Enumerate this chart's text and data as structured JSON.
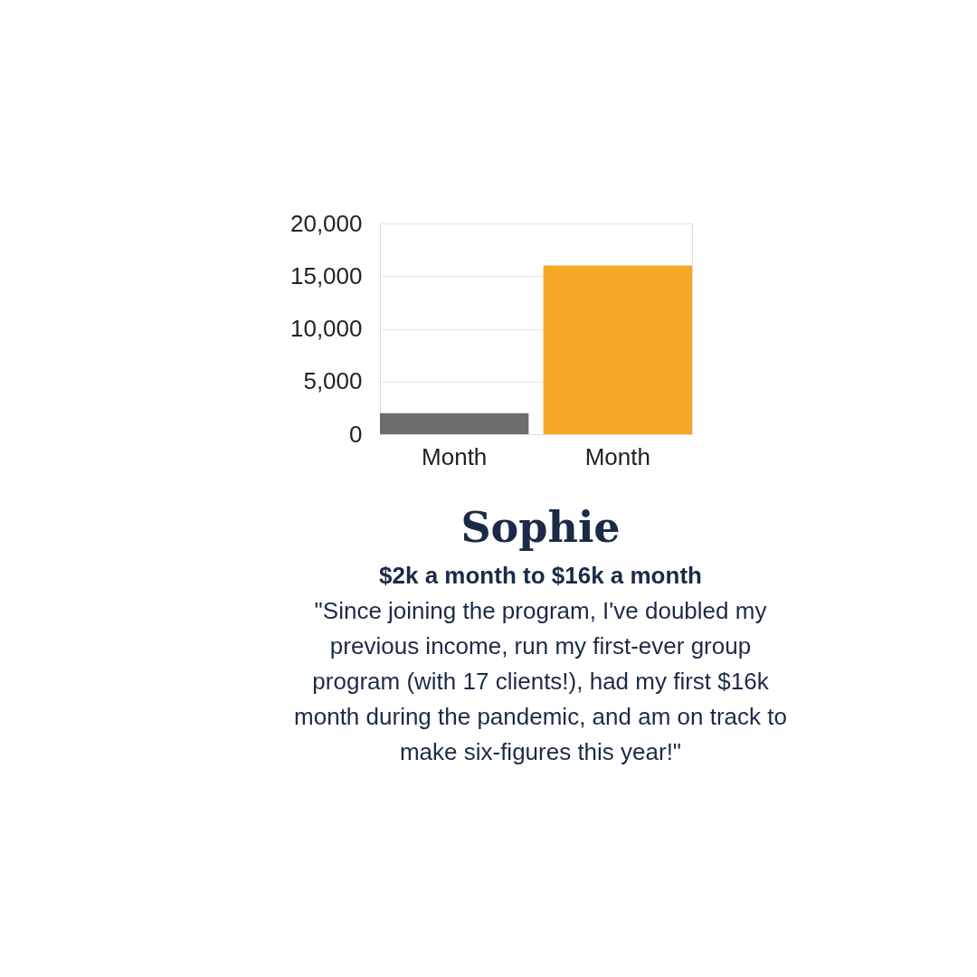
{
  "chart_data": {
    "type": "bar",
    "title": "Sophie",
    "subtitle": "$2k a month to $16k a month",
    "annotations": [
      "\"Since joining the program, I've doubled my\nprevious income, run my first-ever group\nprogram (with 17 clients!), had my first $16k\nmonth during the pandemic, and am on track to\nmake six-figures this year!\""
    ],
    "categories": [
      "Month",
      "Month"
    ],
    "values": [
      2000,
      16000
    ],
    "colors": [
      "#6d6d6d",
      "#f7a627"
    ],
    "ylim": [
      0,
      20000
    ],
    "yticks": [
      {
        "value": 0,
        "label": "0"
      },
      {
        "value": 5000,
        "label": "5,000"
      },
      {
        "value": 10000,
        "label": "10,000"
      },
      {
        "value": 15000,
        "label": "15,000"
      },
      {
        "value": 20000,
        "label": "20,000"
      }
    ],
    "grid": "y"
  }
}
